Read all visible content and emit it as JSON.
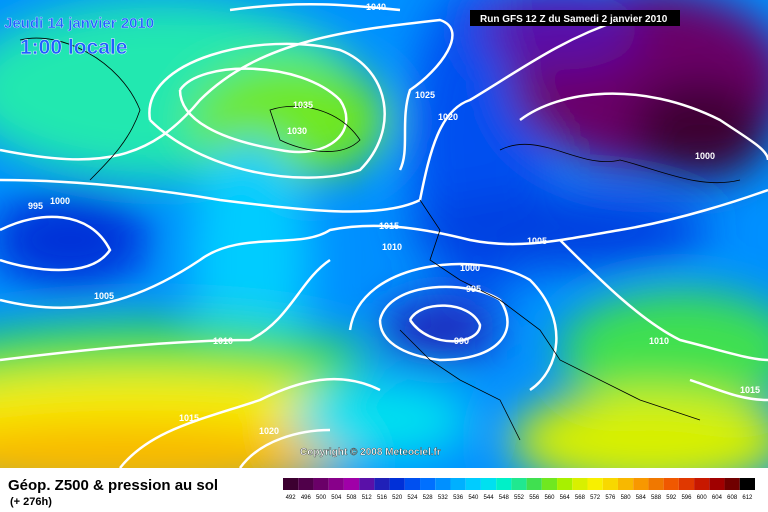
{
  "header": {
    "date": "Jeudi 14 janvier 2010",
    "time": "1:00 locale",
    "run": "Run GFS 12 Z du Samedi 2 janvier 2010"
  },
  "isobars": [
    "1040",
    "1035",
    "1030",
    "1025",
    "1020",
    "1000",
    "995",
    "1000",
    "1015",
    "1010",
    "1005",
    "1000",
    "995",
    "990",
    "1005",
    "1010",
    "1010",
    "1015",
    "1015",
    "1020"
  ],
  "footer": {
    "title": "Géop. Z500 & pression au sol",
    "subtitle": "(+ 276h)",
    "copyright": "Copyright © 2008 Meteociel.fr"
  },
  "legend": {
    "values": [
      492,
      496,
      500,
      504,
      508,
      512,
      516,
      520,
      524,
      528,
      532,
      536,
      540,
      544,
      548,
      552,
      556,
      560,
      564,
      568,
      572,
      576,
      580,
      584,
      588,
      592,
      596,
      600,
      604,
      608,
      612
    ],
    "colors": [
      "#3c0030",
      "#50004a",
      "#6a0068",
      "#88008a",
      "#a000a8",
      "#5a10a8",
      "#2020b8",
      "#0030d8",
      "#0050f0",
      "#0070ff",
      "#0090ff",
      "#00b0ff",
      "#00ccff",
      "#00e0f0",
      "#00f0c8",
      "#20e890",
      "#40e050",
      "#70e820",
      "#a8f000",
      "#d8f000",
      "#f8f000",
      "#f8d800",
      "#f8b800",
      "#f89800",
      "#f07800",
      "#f05800",
      "#e03800",
      "#c81800",
      "#a00000",
      "#700000",
      "#000000"
    ]
  }
}
